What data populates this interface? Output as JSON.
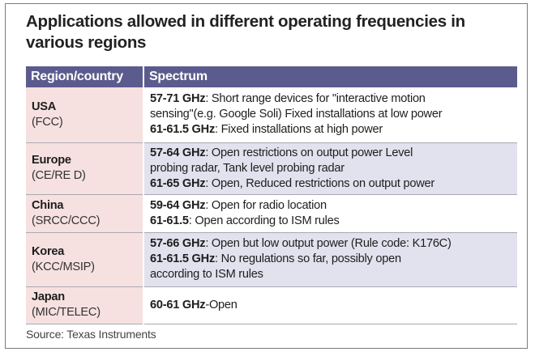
{
  "title": "Applications allowed in different operating frequencies in various regions",
  "columns": [
    "Region/country",
    "Spectrum"
  ],
  "rows": [
    {
      "region": "USA",
      "body": "(FCC)",
      "lines": [
        {
          "b": "57-71 GHz",
          "t": ": Short range devices for \"interactive motion"
        },
        {
          "b": "",
          "t": "sensing\"(e.g. Google Soli) Fixed installations at low power"
        },
        {
          "b": "61-61.5 GHz",
          "t": ": Fixed installations at high power"
        }
      ]
    },
    {
      "region": "Europe",
      "body": "(CE/RE D)",
      "lines": [
        {
          "b": "57-64 GHz",
          "t": ": Open restrictions on output power Level"
        },
        {
          "b": "",
          "t": "probing radar, Tank level probing radar"
        },
        {
          "b": "61-65 GHz",
          "t": ":  Open, Reduced restrictions on output power"
        }
      ]
    },
    {
      "region": "China",
      "body": "(SRCC/CCC)",
      "lines": [
        {
          "b": "59-64 GHz",
          "t": ":  Open for radio location"
        },
        {
          "b": "61-61.5",
          "t": ":  Open according to ISM rules"
        }
      ]
    },
    {
      "region": "Korea",
      "body": "(KCC/MSIP)",
      "lines": [
        {
          "b": "57-66 GHz",
          "t": ":  Open but low output power (Rule code: K176C)"
        },
        {
          "b": "61-61.5 GHz",
          "t": ":  No regulations so far, possibly open"
        },
        {
          "b": "",
          "t": "according to ISM rules"
        }
      ]
    },
    {
      "region": "Japan",
      "body": "(MIC/TELEC)",
      "lines": [
        {
          "b": "60-61 GHz",
          "t": "-Open"
        }
      ]
    }
  ],
  "source": "Source: Texas Instruments",
  "colors": {
    "header": "#5c5b8e",
    "region_cell": "#f6e1e0",
    "alt_row": "#e2e1ee"
  }
}
